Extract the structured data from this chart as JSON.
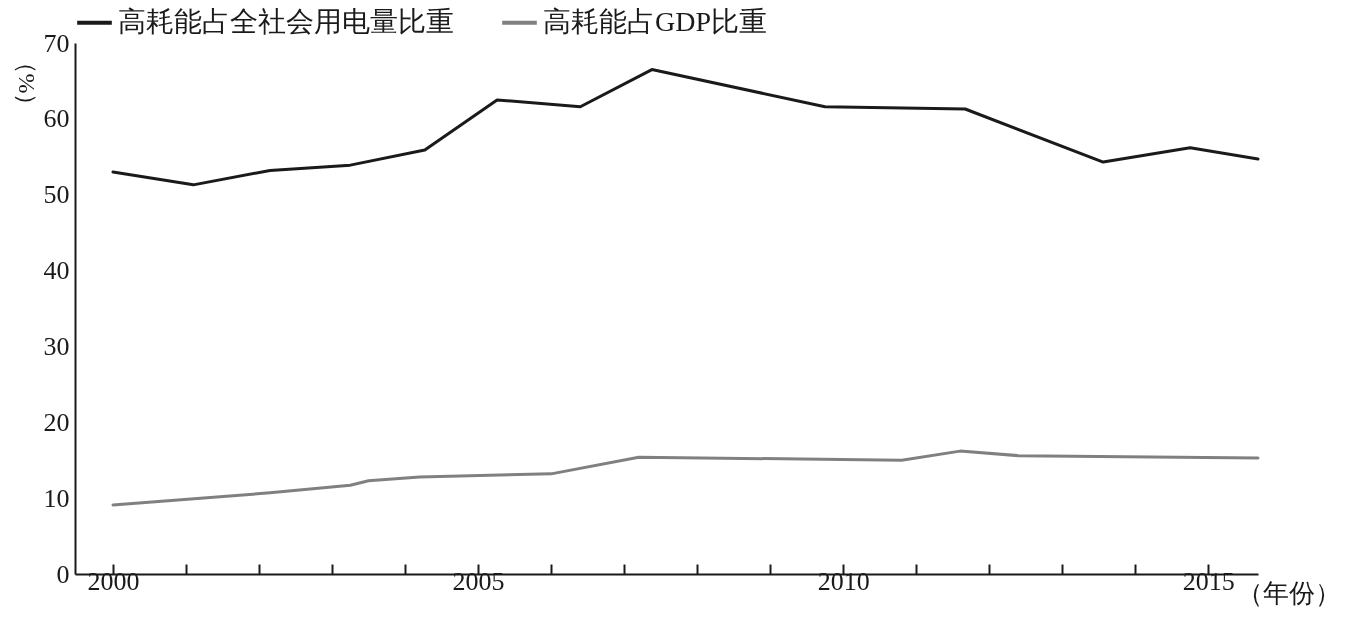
{
  "chart_data": {
    "type": "line",
    "xlabel": "（年份）",
    "ylabel": "（%）",
    "xlim": [
      1999.48,
      2015.68
    ],
    "ylim": [
      0,
      70
    ],
    "xticks": [
      2000,
      {
        "value": 2001,
        "label": null
      },
      {
        "value": 2002,
        "label": null
      },
      {
        "value": 2003,
        "label": null
      },
      {
        "value": 2004,
        "label": null
      },
      2005,
      {
        "value": 2006,
        "label": null
      },
      {
        "value": 2007,
        "label": null
      },
      {
        "value": 2008,
        "label": null
      },
      {
        "value": 2009,
        "label": null
      },
      2010,
      {
        "value": 2011,
        "label": null
      },
      {
        "value": 2012,
        "label": null
      },
      {
        "value": 2013,
        "label": null
      },
      {
        "value": 2014,
        "label": null
      },
      2015
    ],
    "yticks": [
      0,
      10,
      20,
      30,
      40,
      50,
      60,
      70
    ],
    "grid": false,
    "legend": "top",
    "line_style": "solid",
    "marker": "none",
    "series": [
      {
        "name": "高耗能占全社会用电量比重",
        "color": "#1a1a1a",
        "x": [
          2000,
          2001.1,
          2002.15,
          2003.25,
          2004.27,
          2005.26,
          2006.4,
          2007.38,
          2009.75,
          2011.67,
          2013.56,
          2014.75,
          2015.68
        ],
        "values": [
          53.0,
          51.3,
          53.2,
          53.9,
          55.9,
          62.5,
          61.6,
          66.5,
          61.6,
          61.3,
          54.3,
          56.2,
          54.7
        ]
      },
      {
        "name": "高耗能占GDP比重",
        "color": "#808080",
        "x": [
          2000,
          2001.2,
          2002.15,
          2003.25,
          2003.5,
          2004.2,
          2006.0,
          2007.2,
          2010.8,
          2011.6,
          2012.4,
          2015.68
        ],
        "values": [
          9.1,
          10.0,
          10.7,
          11.7,
          12.3,
          12.8,
          13.2,
          15.4,
          15.0,
          16.2,
          15.6,
          15.3
        ]
      }
    ]
  }
}
